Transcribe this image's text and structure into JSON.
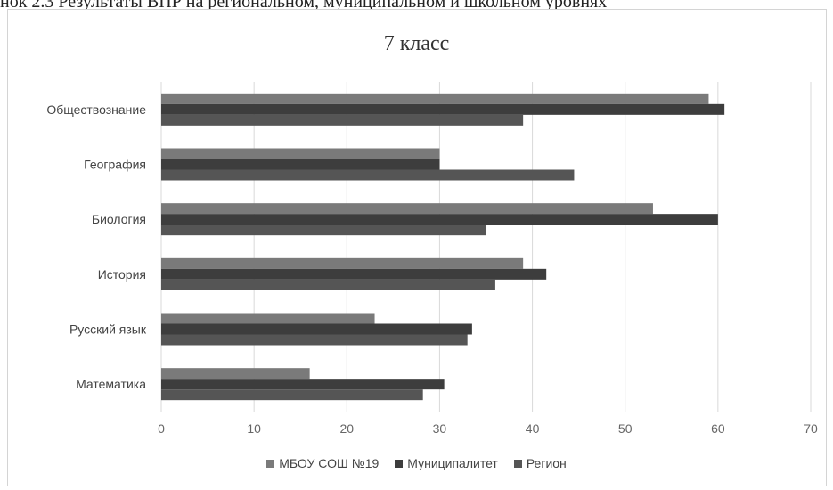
{
  "caption": "нок 2.3 Результаты ВПР на региональном, муниципальном и школьном уровнях",
  "chart_data": {
    "type": "bar",
    "orientation": "horizontal",
    "title": "7 класс",
    "categories": [
      "Обществознание",
      "География",
      "Биология",
      "История",
      "Русский язык",
      "Математика"
    ],
    "series": [
      {
        "name": "МБОУ СОШ №19",
        "color": "#7a7a7a",
        "values": [
          59,
          30,
          53,
          39,
          23,
          16
        ]
      },
      {
        "name": "Муниципалитет",
        "color": "#3d3d3d",
        "values": [
          60.7,
          30,
          60,
          41.5,
          33.5,
          30.5
        ]
      },
      {
        "name": "Регион",
        "color": "#555555",
        "values": [
          39,
          44.5,
          35,
          36,
          33,
          28.2
        ]
      }
    ],
    "xlim": [
      0,
      70
    ],
    "xticks": [
      "0",
      "10",
      "20",
      "30",
      "40",
      "50",
      "60",
      "70"
    ],
    "grid": true,
    "legend_position": "bottom"
  }
}
